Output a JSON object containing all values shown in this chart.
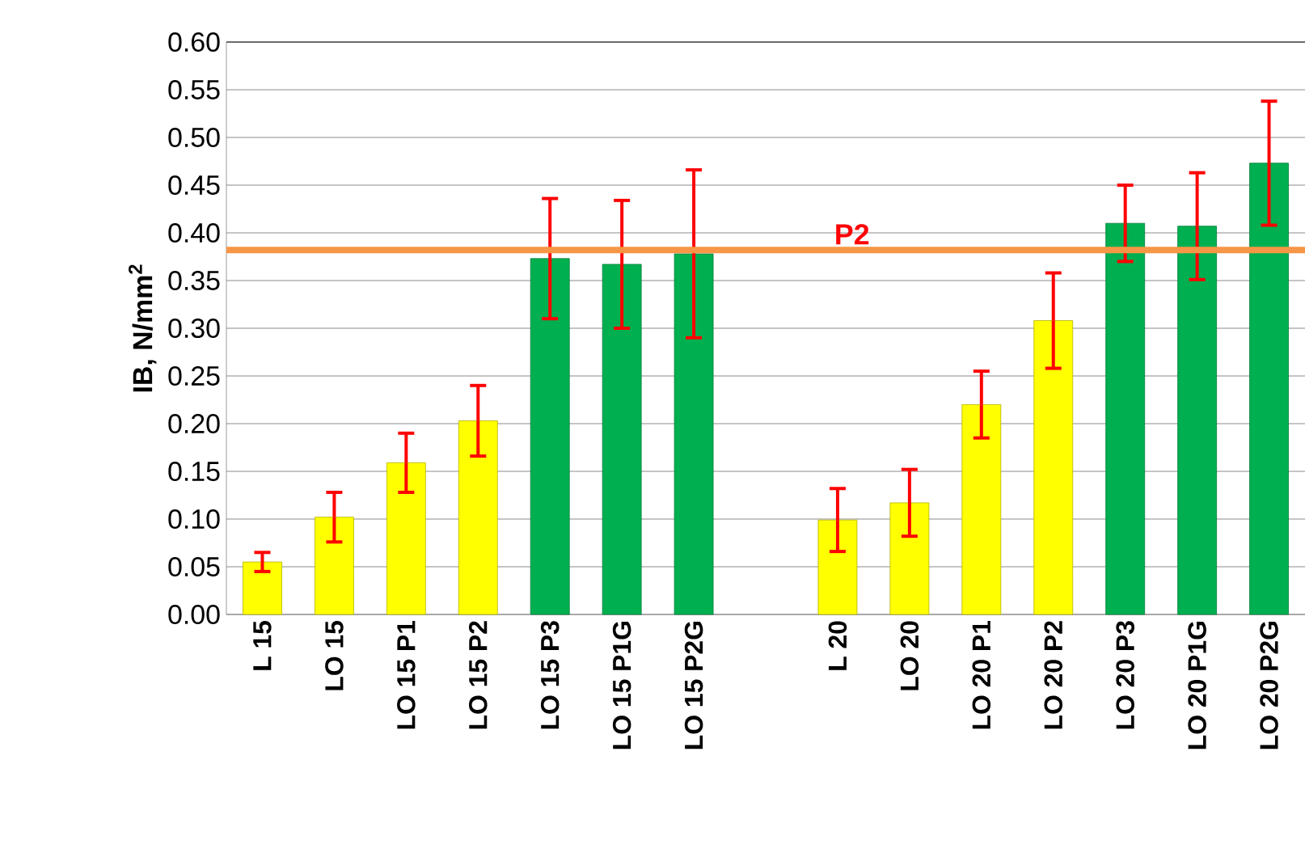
{
  "chart_data": {
    "type": "bar",
    "ylabel": "IB, N/mm$^{2}$",
    "categories": [
      "L 15",
      "LO 15",
      "LO 15 P1",
      "LO 15 P2",
      "LO 15 P3",
      "LO 15 P1G",
      "LO 15 P2G",
      null,
      "L 20",
      "LO 20",
      "LO 20 P1",
      "LO 20 P2",
      "LO 20 P3",
      "LO 20 P1G",
      "LO 20 P2G"
    ],
    "values": [
      0.055,
      0.102,
      0.159,
      0.203,
      0.373,
      0.367,
      0.378,
      null,
      0.099,
      0.117,
      0.22,
      0.308,
      0.41,
      0.407,
      0.473
    ],
    "errors": [
      0.01,
      0.026,
      0.031,
      0.037,
      0.063,
      0.067,
      0.088,
      null,
      0.033,
      0.035,
      0.035,
      0.05,
      0.04,
      0.056,
      0.065
    ],
    "colors": [
      "#ffff00",
      "#ffff00",
      "#ffff00",
      "#ffff00",
      "#00b050",
      "#00b050",
      "#00b050",
      null,
      "#ffff00",
      "#ffff00",
      "#ffff00",
      "#ffff00",
      "#00b050",
      "#00b050",
      "#00b050"
    ],
    "ylim": [
      0,
      0.6
    ],
    "yticks": [
      {
        "value": 0,
        "label": "0.00"
      },
      {
        "value": 0.05,
        "label": "0.05"
      },
      {
        "value": 0.1,
        "label": "0.10"
      },
      {
        "value": 0.15,
        "label": "0.15"
      },
      {
        "value": 0.2,
        "label": "0.20"
      },
      {
        "value": 0.25,
        "label": "0.25"
      },
      {
        "value": 0.3,
        "label": "0.30"
      },
      {
        "value": 0.35,
        "label": "0.35"
      },
      {
        "value": 0.4,
        "label": "0.40"
      },
      {
        "value": 0.45,
        "label": "0.45"
      },
      {
        "value": 0.5,
        "label": "0.50"
      },
      {
        "value": 0.55,
        "label": "0.55"
      },
      {
        "value": 0.6,
        "label": "0.60"
      }
    ],
    "ref_lines": [
      {
        "axis": "y",
        "value": 0.382,
        "label": "P2",
        "color": "#f79646"
      }
    ],
    "grid": "y"
  }
}
